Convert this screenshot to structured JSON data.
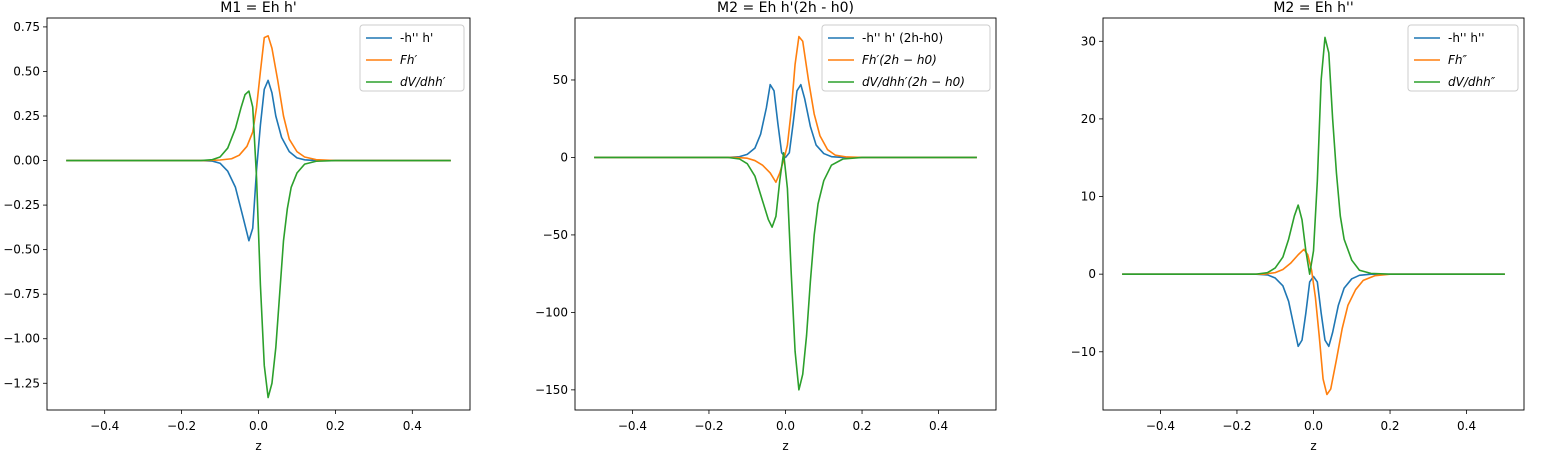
{
  "chart_data": [
    {
      "type": "line",
      "title": "M1 = Eh h'",
      "xlabel": "z",
      "xlim": [
        -0.55,
        0.55
      ],
      "ylim": [
        -1.4,
        0.8
      ],
      "xticks": [
        -0.4,
        -0.2,
        0.0,
        0.2,
        0.4
      ],
      "xtick_labels": [
        "−0.4",
        "−0.2",
        "0.0",
        "0.2",
        "0.4"
      ],
      "yticks": [
        0.75,
        0.5,
        0.25,
        0.0,
        -0.25,
        -0.5,
        -0.75,
        -1.0,
        -1.25
      ],
      "ytick_labels": [
        "0.75",
        "0.50",
        "0.25",
        "0.00",
        "−0.25",
        "−0.50",
        "−0.75",
        "−1.00",
        "−1.25"
      ],
      "legend_position": "top-right",
      "series": [
        {
          "name": "-h'' h'",
          "color": "#1f77b4",
          "points": [
            [
              -0.5,
              0
            ],
            [
              -0.15,
              0
            ],
            [
              -0.12,
              -0.003
            ],
            [
              -0.1,
              -0.015
            ],
            [
              -0.08,
              -0.06
            ],
            [
              -0.06,
              -0.15
            ],
            [
              -0.04,
              -0.32
            ],
            [
              -0.025,
              -0.45
            ],
            [
              -0.015,
              -0.38
            ],
            [
              -0.005,
              -0.05
            ],
            [
              0.005,
              0.2
            ],
            [
              0.015,
              0.4
            ],
            [
              0.025,
              0.45
            ],
            [
              0.035,
              0.38
            ],
            [
              0.045,
              0.25
            ],
            [
              0.06,
              0.13
            ],
            [
              0.08,
              0.05
            ],
            [
              0.1,
              0.015
            ],
            [
              0.12,
              0.004
            ],
            [
              0.15,
              0
            ],
            [
              0.5,
              0
            ]
          ]
        },
        {
          "name": "Fh′",
          "color": "#ff7f0e",
          "points": [
            [
              -0.5,
              0
            ],
            [
              -0.14,
              0
            ],
            [
              -0.1,
              0.003
            ],
            [
              -0.07,
              0.01
            ],
            [
              -0.05,
              0.03
            ],
            [
              -0.03,
              0.08
            ],
            [
              -0.015,
              0.16
            ],
            [
              -0.005,
              0.3
            ],
            [
              0.005,
              0.5
            ],
            [
              0.015,
              0.69
            ],
            [
              0.025,
              0.7
            ],
            [
              0.035,
              0.63
            ],
            [
              0.05,
              0.45
            ],
            [
              0.065,
              0.25
            ],
            [
              0.08,
              0.12
            ],
            [
              0.1,
              0.05
            ],
            [
              0.12,
              0.02
            ],
            [
              0.15,
              0.005
            ],
            [
              0.2,
              0
            ],
            [
              0.5,
              0
            ]
          ]
        },
        {
          "name": "dV/dhh′",
          "color": "#2ca02c",
          "points": [
            [
              -0.5,
              0
            ],
            [
              -0.15,
              0
            ],
            [
              -0.12,
              0.005
            ],
            [
              -0.1,
              0.02
            ],
            [
              -0.08,
              0.07
            ],
            [
              -0.06,
              0.18
            ],
            [
              -0.045,
              0.3
            ],
            [
              -0.035,
              0.37
            ],
            [
              -0.025,
              0.39
            ],
            [
              -0.015,
              0.3
            ],
            [
              -0.005,
              -0.1
            ],
            [
              0.005,
              -0.7
            ],
            [
              0.015,
              -1.15
            ],
            [
              0.025,
              -1.33
            ],
            [
              0.035,
              -1.25
            ],
            [
              0.045,
              -1.05
            ],
            [
              0.055,
              -0.75
            ],
            [
              0.065,
              -0.45
            ],
            [
              0.075,
              -0.27
            ],
            [
              0.085,
              -0.15
            ],
            [
              0.1,
              -0.07
            ],
            [
              0.12,
              -0.02
            ],
            [
              0.15,
              -0.004
            ],
            [
              0.2,
              0
            ],
            [
              0.5,
              0
            ]
          ]
        }
      ]
    },
    {
      "type": "line",
      "title": "M2 = Eh h'(2h - h0)",
      "xlabel": "z",
      "xlim": [
        -0.55,
        0.55
      ],
      "ylim": [
        -163,
        90
      ],
      "xticks": [
        -0.4,
        -0.2,
        0.0,
        0.2,
        0.4
      ],
      "xtick_labels": [
        "−0.4",
        "−0.2",
        "0.0",
        "0.2",
        "0.4"
      ],
      "yticks": [
        50,
        0,
        -50,
        -100,
        -150
      ],
      "ytick_labels": [
        "50",
        "0",
        "−50",
        "−100",
        "−150"
      ],
      "legend_position": "top-right",
      "series": [
        {
          "name": "-h'' h' (2h-h0)",
          "color": "#1f77b4",
          "points": [
            [
              -0.5,
              0
            ],
            [
              -0.15,
              0
            ],
            [
              -0.12,
              0.5
            ],
            [
              -0.1,
              2
            ],
            [
              -0.08,
              6
            ],
            [
              -0.065,
              15
            ],
            [
              -0.05,
              32
            ],
            [
              -0.04,
              47
            ],
            [
              -0.03,
              43
            ],
            [
              -0.02,
              22
            ],
            [
              -0.01,
              3
            ],
            [
              0.0,
              0
            ],
            [
              0.01,
              3
            ],
            [
              0.02,
              22
            ],
            [
              0.03,
              43
            ],
            [
              0.04,
              47
            ],
            [
              0.05,
              38
            ],
            [
              0.065,
              20
            ],
            [
              0.08,
              8
            ],
            [
              0.1,
              2.5
            ],
            [
              0.12,
              0.5
            ],
            [
              0.15,
              0
            ],
            [
              0.5,
              0
            ]
          ]
        },
        {
          "name": "Fh′(2h − h0)",
          "color": "#ff7f0e",
          "points": [
            [
              -0.5,
              0
            ],
            [
              -0.13,
              0
            ],
            [
              -0.1,
              -0.5
            ],
            [
              -0.08,
              -2
            ],
            [
              -0.06,
              -5
            ],
            [
              -0.04,
              -10
            ],
            [
              -0.025,
              -16
            ],
            [
              -0.015,
              -10
            ],
            [
              -0.005,
              -2
            ],
            [
              0.005,
              8
            ],
            [
              0.015,
              30
            ],
            [
              0.025,
              60
            ],
            [
              0.035,
              78
            ],
            [
              0.045,
              75
            ],
            [
              0.06,
              50
            ],
            [
              0.075,
              28
            ],
            [
              0.09,
              14
            ],
            [
              0.11,
              5
            ],
            [
              0.13,
              1.5
            ],
            [
              0.16,
              0.3
            ],
            [
              0.2,
              0
            ],
            [
              0.5,
              0
            ]
          ]
        },
        {
          "name": "dV/dhh′(2h − h0)",
          "color": "#2ca02c",
          "points": [
            [
              -0.5,
              0
            ],
            [
              -0.15,
              0
            ],
            [
              -0.12,
              -1
            ],
            [
              -0.1,
              -4
            ],
            [
              -0.08,
              -12
            ],
            [
              -0.06,
              -28
            ],
            [
              -0.045,
              -40
            ],
            [
              -0.035,
              -45
            ],
            [
              -0.025,
              -38
            ],
            [
              -0.015,
              -15
            ],
            [
              -0.005,
              3
            ],
            [
              0.005,
              -20
            ],
            [
              0.015,
              -75
            ],
            [
              0.025,
              -125
            ],
            [
              0.035,
              -150
            ],
            [
              0.045,
              -140
            ],
            [
              0.055,
              -115
            ],
            [
              0.065,
              -80
            ],
            [
              0.075,
              -50
            ],
            [
              0.085,
              -30
            ],
            [
              0.1,
              -15
            ],
            [
              0.12,
              -5
            ],
            [
              0.15,
              -1
            ],
            [
              0.2,
              0
            ],
            [
              0.5,
              0
            ]
          ]
        }
      ]
    },
    {
      "type": "line",
      "title": "M2 = Eh h''",
      "xlabel": "z",
      "xlim": [
        -0.55,
        0.55
      ],
      "ylim": [
        -17.5,
        33
      ],
      "xticks": [
        -0.4,
        -0.2,
        0.0,
        0.2,
        0.4
      ],
      "xtick_labels": [
        "−0.4",
        "−0.2",
        "0.0",
        "0.2",
        "0.4"
      ],
      "yticks": [
        30,
        20,
        10,
        0,
        -10
      ],
      "ytick_labels": [
        "30",
        "20",
        "10",
        "0",
        "−10"
      ],
      "legend_position": "top-right",
      "series": [
        {
          "name": "-h'' h''",
          "color": "#1f77b4",
          "points": [
            [
              -0.5,
              0
            ],
            [
              -0.15,
              0
            ],
            [
              -0.12,
              -0.1
            ],
            [
              -0.1,
              -0.5
            ],
            [
              -0.08,
              -1.5
            ],
            [
              -0.065,
              -3.5
            ],
            [
              -0.05,
              -7
            ],
            [
              -0.04,
              -9.3
            ],
            [
              -0.03,
              -8.5
            ],
            [
              -0.02,
              -5
            ],
            [
              -0.01,
              -1
            ],
            [
              0.0,
              -0.3
            ],
            [
              0.01,
              -1
            ],
            [
              0.02,
              -5
            ],
            [
              0.03,
              -8.5
            ],
            [
              0.04,
              -9.3
            ],
            [
              0.05,
              -7.5
            ],
            [
              0.065,
              -4
            ],
            [
              0.08,
              -1.8
            ],
            [
              0.1,
              -0.6
            ],
            [
              0.12,
              -0.15
            ],
            [
              0.15,
              0
            ],
            [
              0.5,
              0
            ]
          ]
        },
        {
          "name": "Fh″",
          "color": "#ff7f0e",
          "points": [
            [
              -0.5,
              0
            ],
            [
              -0.13,
              0
            ],
            [
              -0.1,
              0.2
            ],
            [
              -0.08,
              0.6
            ],
            [
              -0.06,
              1.4
            ],
            [
              -0.04,
              2.5
            ],
            [
              -0.025,
              3.2
            ],
            [
              -0.015,
              2.5
            ],
            [
              -0.005,
              0.5
            ],
            [
              0.005,
              -3
            ],
            [
              0.015,
              -8
            ],
            [
              0.025,
              -13.5
            ],
            [
              0.035,
              -15.5
            ],
            [
              0.045,
              -14.8
            ],
            [
              0.06,
              -11
            ],
            [
              0.075,
              -7
            ],
            [
              0.09,
              -4
            ],
            [
              0.11,
              -2
            ],
            [
              0.13,
              -0.8
            ],
            [
              0.16,
              -0.2
            ],
            [
              0.2,
              0
            ],
            [
              0.5,
              0
            ]
          ]
        },
        {
          "name": "dV/dhh″",
          "color": "#2ca02c",
          "points": [
            [
              -0.5,
              0
            ],
            [
              -0.15,
              0
            ],
            [
              -0.12,
              0.2
            ],
            [
              -0.1,
              0.8
            ],
            [
              -0.08,
              2.2
            ],
            [
              -0.065,
              4.5
            ],
            [
              -0.05,
              7.5
            ],
            [
              -0.04,
              8.9
            ],
            [
              -0.03,
              7
            ],
            [
              -0.02,
              3
            ],
            [
              -0.01,
              0
            ],
            [
              0.0,
              3
            ],
            [
              0.01,
              12
            ],
            [
              0.02,
              25
            ],
            [
              0.03,
              30.5
            ],
            [
              0.04,
              28.5
            ],
            [
              0.05,
              20
            ],
            [
              0.06,
              13
            ],
            [
              0.07,
              7.5
            ],
            [
              0.08,
              4.5
            ],
            [
              0.1,
              1.8
            ],
            [
              0.12,
              0.5
            ],
            [
              0.15,
              0.1
            ],
            [
              0.2,
              0
            ],
            [
              0.5,
              0
            ]
          ]
        }
      ]
    }
  ]
}
